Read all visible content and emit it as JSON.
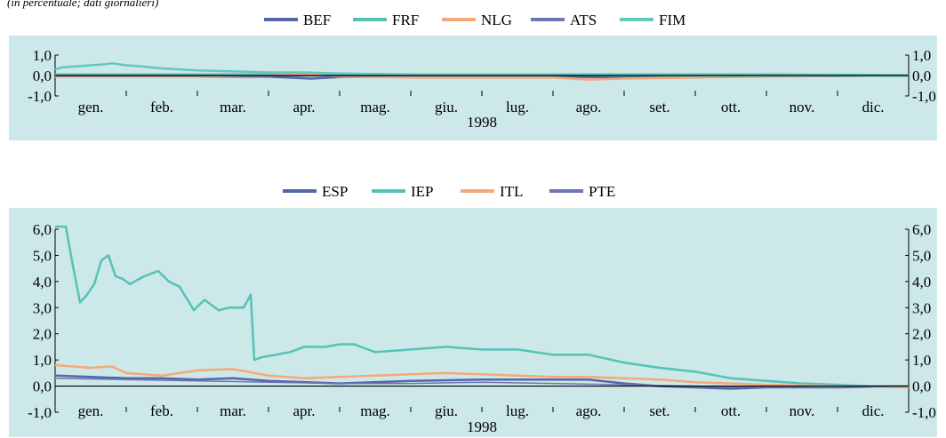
{
  "subtitle": "(in percentuale; dati giornalieri)",
  "colors": {
    "panel_bg": "#cce8e8",
    "BEF": "#5565a8",
    "FRF": "#55c2b8",
    "NLG": "#f5a878",
    "ATS": "#6c76b4",
    "FIM": "#60c8c0",
    "ESP": "#5565a8",
    "IEP": "#55c2b8",
    "ITL": "#f5a878",
    "PTE": "#6c76b4"
  },
  "chart_data": [
    {
      "type": "line",
      "x_unit": "month index (0 = start of Jan 1998)",
      "x_range": [
        0,
        12
      ],
      "xlabel": "1998",
      "month_labels": [
        "gen.",
        "feb.",
        "mar.",
        "apr.",
        "mag.",
        "giu.",
        "lug.",
        "ago.",
        "set.",
        "ott.",
        "nov.",
        "dic."
      ],
      "ylim": [
        -1.0,
        1.0
      ],
      "y_ticks": [
        "1,0",
        "0,0",
        "-1,0"
      ],
      "y_tick_values": [
        1.0,
        0.0,
        -1.0
      ],
      "legend_placement": "top-center",
      "series": [
        {
          "name": "BEF",
          "x": [
            0,
            1,
            2,
            3,
            3.6,
            4,
            5,
            6,
            7,
            8,
            9,
            10,
            11,
            12
          ],
          "y": [
            -0.05,
            -0.05,
            -0.05,
            -0.05,
            -0.15,
            -0.08,
            -0.05,
            -0.05,
            -0.05,
            -0.1,
            -0.05,
            -0.03,
            -0.02,
            0.0
          ]
        },
        {
          "name": "FRF",
          "x": [
            0,
            1,
            2,
            3,
            4,
            5,
            6,
            7,
            8,
            9,
            10,
            11,
            12
          ],
          "y": [
            0.05,
            0.05,
            0.05,
            0.05,
            0.05,
            0.05,
            0.05,
            0.05,
            0.05,
            0.05,
            0.05,
            0.04,
            0.02
          ]
        },
        {
          "name": "NLG",
          "x": [
            0,
            1,
            2,
            3,
            3.6,
            4,
            5,
            6,
            7,
            7.5,
            8,
            9,
            10,
            11,
            12
          ],
          "y": [
            -0.05,
            -0.05,
            -0.05,
            0.0,
            0.05,
            -0.05,
            -0.1,
            -0.1,
            -0.1,
            -0.2,
            -0.15,
            -0.1,
            -0.05,
            -0.02,
            0.0
          ]
        },
        {
          "name": "ATS",
          "x": [
            0,
            1,
            2,
            3,
            4,
            5,
            6,
            7,
            8,
            9,
            10,
            11,
            12
          ],
          "y": [
            -0.02,
            -0.02,
            -0.02,
            -0.02,
            -0.02,
            -0.02,
            -0.02,
            -0.02,
            -0.02,
            -0.02,
            -0.02,
            -0.02,
            0.0
          ]
        },
        {
          "name": "FIM",
          "x": [
            0,
            0.1,
            0.3,
            0.5,
            0.7,
            0.8,
            1,
            1.2,
            1.5,
            2,
            2.5,
            3,
            3.5,
            4,
            5,
            6,
            7,
            8,
            9,
            10,
            11,
            12
          ],
          "y": [
            0.3,
            0.4,
            0.45,
            0.5,
            0.55,
            0.6,
            0.5,
            0.45,
            0.35,
            0.25,
            0.2,
            0.15,
            0.15,
            0.1,
            0.05,
            0.05,
            0.05,
            0.0,
            0.0,
            0.0,
            0.0,
            0.0
          ]
        }
      ]
    },
    {
      "type": "line",
      "x_unit": "month index (0 = start of Jan 1998)",
      "x_range": [
        0,
        12
      ],
      "xlabel": "1998",
      "month_labels": [
        "gen.",
        "feb.",
        "mar.",
        "apr.",
        "mag.",
        "giu.",
        "lug.",
        "ago.",
        "set.",
        "ott.",
        "nov.",
        "dic."
      ],
      "ylim": [
        -1.0,
        6.0
      ],
      "y_ticks": [
        "6,0",
        "5,0",
        "4,0",
        "3,0",
        "2,0",
        "1,0",
        "0,0",
        "-1,0"
      ],
      "y_tick_values": [
        6.0,
        5.0,
        4.0,
        3.0,
        2.0,
        1.0,
        0.0,
        -1.0
      ],
      "legend_placement": "top-center",
      "series": [
        {
          "name": "ESP",
          "x": [
            0,
            0.5,
            1,
            1.5,
            2,
            2.5,
            3,
            4,
            5,
            6,
            7,
            7.5,
            8,
            8.5,
            9,
            9.5,
            10,
            11,
            12
          ],
          "y": [
            0.4,
            0.35,
            0.3,
            0.3,
            0.25,
            0.3,
            0.2,
            0.1,
            0.2,
            0.25,
            0.25,
            0.25,
            0.1,
            0.0,
            -0.05,
            -0.1,
            -0.05,
            -0.05,
            0.0
          ]
        },
        {
          "name": "IEP",
          "x": [
            0,
            0.15,
            0.25,
            0.35,
            0.45,
            0.55,
            0.65,
            0.75,
            0.85,
            0.95,
            1.05,
            1.25,
            1.45,
            1.6,
            1.75,
            1.95,
            2.1,
            2.3,
            2.45,
            2.65,
            2.75,
            2.8,
            2.9,
            3.1,
            3.3,
            3.5,
            3.8,
            4.0,
            4.2,
            4.5,
            5.0,
            5.5,
            6.0,
            6.5,
            7.0,
            7.5,
            8.0,
            8.5,
            9.0,
            9.5,
            10.0,
            10.5,
            11.0,
            11.5,
            12.0
          ],
          "y": [
            6.1,
            6.1,
            4.6,
            3.2,
            3.5,
            3.9,
            4.8,
            5.0,
            4.2,
            4.1,
            3.9,
            4.2,
            4.4,
            4.0,
            3.8,
            2.9,
            3.3,
            2.9,
            3.0,
            3.0,
            3.5,
            1.0,
            1.1,
            1.2,
            1.3,
            1.5,
            1.5,
            1.6,
            1.6,
            1.3,
            1.4,
            1.5,
            1.4,
            1.4,
            1.2,
            1.2,
            0.9,
            0.7,
            0.55,
            0.3,
            0.2,
            0.1,
            0.05,
            0.0,
            0.0
          ]
        },
        {
          "name": "ITL",
          "x": [
            0,
            0.5,
            0.8,
            1,
            1.5,
            2,
            2.5,
            3,
            3.5,
            4,
            4.5,
            5,
            5.5,
            6,
            6.5,
            7,
            7.5,
            8,
            8.5,
            9,
            9.5,
            10,
            11,
            12
          ],
          "y": [
            0.8,
            0.7,
            0.75,
            0.5,
            0.4,
            0.6,
            0.65,
            0.4,
            0.3,
            0.35,
            0.4,
            0.45,
            0.5,
            0.45,
            0.4,
            0.35,
            0.35,
            0.3,
            0.25,
            0.15,
            0.1,
            0.05,
            0.0,
            -0.05
          ]
        },
        {
          "name": "PTE",
          "x": [
            0,
            1,
            2,
            3,
            4,
            5,
            6,
            7,
            8,
            9,
            10,
            11,
            12
          ],
          "y": [
            0.3,
            0.25,
            0.2,
            0.15,
            0.1,
            0.1,
            0.15,
            0.1,
            0.05,
            0.0,
            -0.05,
            -0.05,
            0.0
          ]
        }
      ]
    }
  ]
}
